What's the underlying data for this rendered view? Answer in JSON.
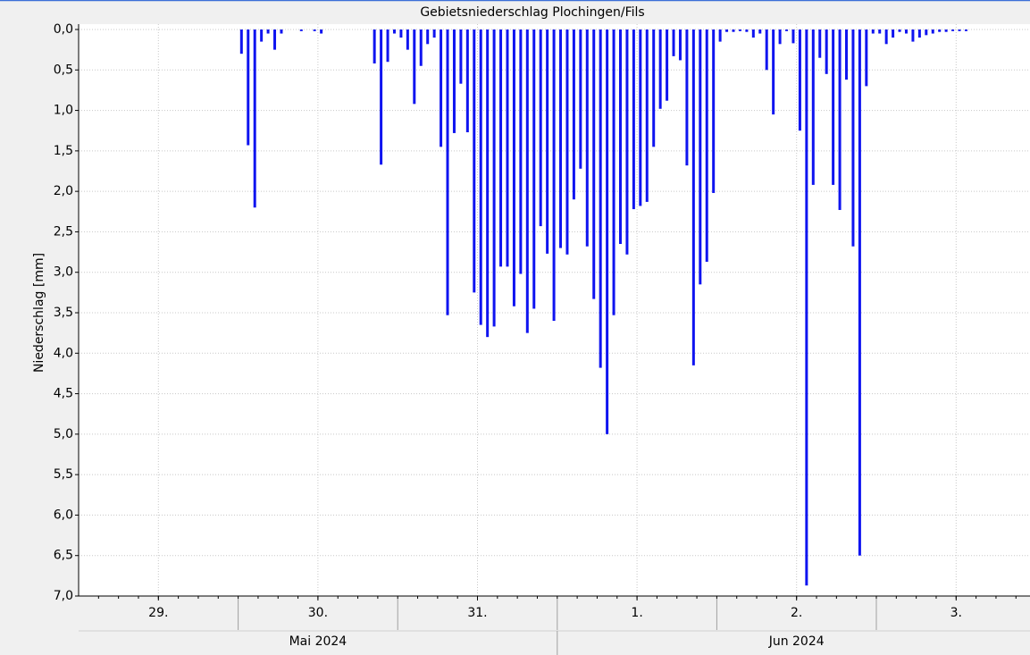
{
  "chart_data": {
    "type": "bar",
    "title": "Gebietsniederschlag Plochingen/Fils",
    "ylabel": "Niederschlag [mm]",
    "color": "#0f14f0",
    "yinverted": true,
    "grid": true,
    "ylim": [
      0,
      7
    ],
    "yticks": [
      {
        "value": 0,
        "label": "0,0"
      },
      {
        "value": 0.5,
        "label": "0,5"
      },
      {
        "value": 1,
        "label": "1,0"
      },
      {
        "value": 1.5,
        "label": "1,5"
      },
      {
        "value": 2,
        "label": "2,0"
      },
      {
        "value": 2.5,
        "label": "2,5"
      },
      {
        "value": 3,
        "label": "3,0"
      },
      {
        "value": 3.5,
        "label": "3,5"
      },
      {
        "value": 4,
        "label": "4,0"
      },
      {
        "value": 4.5,
        "label": "4,5"
      },
      {
        "value": 5,
        "label": "5,0"
      },
      {
        "value": 5.5,
        "label": "5,5"
      },
      {
        "value": 6,
        "label": "6,0"
      },
      {
        "value": 6.5,
        "label": "6,5"
      },
      {
        "value": 7,
        "label": "7,0"
      }
    ],
    "xlim": [
      "2024-05-29T00:00",
      "2024-06-04T00:00"
    ],
    "xticks": [
      {
        "value": "2024-05-29T12:00",
        "label": "29."
      },
      {
        "value": "2024-05-30T12:00",
        "label": "30."
      },
      {
        "value": "2024-05-31T12:00",
        "label": "31."
      },
      {
        "value": "2024-06-01T12:00",
        "label": "1."
      },
      {
        "value": "2024-06-02T12:00",
        "label": "2."
      },
      {
        "value": "2024-06-03T12:00",
        "label": "3."
      }
    ],
    "xgroups": [
      {
        "label": "Mai 2024",
        "start": "2024-05-29T00:00",
        "end": "2024-06-01T00:00"
      },
      {
        "label": "Jun 2024",
        "start": "2024-06-01T00:00",
        "end": "2024-06-04T00:00"
      }
    ],
    "x": [
      "2024-05-30T00:00",
      "2024-05-30T01:00",
      "2024-05-30T02:00",
      "2024-05-30T03:00",
      "2024-05-30T04:00",
      "2024-05-30T05:00",
      "2024-05-30T06:00",
      "2024-05-30T09:00",
      "2024-05-30T11:00",
      "2024-05-30T12:00",
      "2024-05-30T20:00",
      "2024-05-30T21:00",
      "2024-05-30T22:00",
      "2024-05-30T23:00",
      "2024-05-31T00:00",
      "2024-05-31T01:00",
      "2024-05-31T02:00",
      "2024-05-31T03:00",
      "2024-05-31T04:00",
      "2024-05-31T05:00",
      "2024-05-31T06:00",
      "2024-05-31T07:00",
      "2024-05-31T08:00",
      "2024-05-31T09:00",
      "2024-05-31T10:00",
      "2024-05-31T11:00",
      "2024-05-31T12:00",
      "2024-05-31T13:00",
      "2024-05-31T14:00",
      "2024-05-31T15:00",
      "2024-05-31T16:00",
      "2024-05-31T17:00",
      "2024-05-31T18:00",
      "2024-05-31T19:00",
      "2024-05-31T20:00",
      "2024-05-31T21:00",
      "2024-05-31T22:00",
      "2024-05-31T23:00",
      "2024-06-01T00:00",
      "2024-06-01T01:00",
      "2024-06-01T02:00",
      "2024-06-01T03:00",
      "2024-06-01T04:00",
      "2024-06-01T05:00",
      "2024-06-01T06:00",
      "2024-06-01T07:00",
      "2024-06-01T08:00",
      "2024-06-01T09:00",
      "2024-06-01T10:00",
      "2024-06-01T11:00",
      "2024-06-01T12:00",
      "2024-06-01T13:00",
      "2024-06-01T14:00",
      "2024-06-01T15:00",
      "2024-06-01T16:00",
      "2024-06-01T17:00",
      "2024-06-01T18:00",
      "2024-06-01T19:00",
      "2024-06-01T20:00",
      "2024-06-01T21:00",
      "2024-06-01T22:00",
      "2024-06-01T23:00",
      "2024-06-02T00:00",
      "2024-06-02T01:00",
      "2024-06-02T02:00",
      "2024-06-02T03:00",
      "2024-06-02T04:00",
      "2024-06-02T05:00",
      "2024-06-02T06:00",
      "2024-06-02T07:00",
      "2024-06-02T08:00",
      "2024-06-02T09:00",
      "2024-06-02T10:00",
      "2024-06-02T11:00",
      "2024-06-02T12:00",
      "2024-06-02T13:00",
      "2024-06-02T14:00",
      "2024-06-02T15:00",
      "2024-06-02T16:00",
      "2024-06-02T17:00",
      "2024-06-02T18:00",
      "2024-06-02T19:00",
      "2024-06-02T20:00",
      "2024-06-02T21:00",
      "2024-06-02T22:00",
      "2024-06-02T23:00",
      "2024-06-03T00:00",
      "2024-06-03T01:00",
      "2024-06-03T02:00",
      "2024-06-03T03:00",
      "2024-06-03T04:00",
      "2024-06-03T05:00",
      "2024-06-03T06:00",
      "2024-06-03T07:00",
      "2024-06-03T08:00",
      "2024-06-03T09:00",
      "2024-06-03T10:00",
      "2024-06-03T11:00",
      "2024-06-03T12:00",
      "2024-06-03T13:00"
    ],
    "values": [
      0.3,
      1.43,
      2.2,
      0.15,
      0.05,
      0.25,
      0.05,
      0.02,
      0.02,
      0.05,
      0.42,
      1.67,
      0.4,
      0.05,
      0.1,
      0.25,
      0.92,
      0.45,
      0.18,
      0.1,
      1.45,
      3.53,
      1.28,
      0.67,
      1.27,
      3.25,
      3.65,
      3.8,
      3.67,
      2.93,
      2.93,
      3.42,
      3.02,
      3.75,
      3.45,
      2.43,
      2.77,
      3.6,
      2.7,
      2.78,
      2.1,
      1.72,
      2.68,
      3.33,
      4.18,
      5.0,
      3.53,
      2.65,
      2.78,
      2.22,
      2.18,
      2.13,
      1.45,
      0.98,
      0.88,
      0.33,
      0.38,
      1.68,
      4.15,
      3.15,
      2.87,
      2.02,
      0.15,
      0.03,
      0.03,
      0.02,
      0.03,
      0.1,
      0.05,
      0.5,
      1.05,
      0.18,
      0.02,
      0.17,
      1.25,
      6.87,
      1.92,
      0.35,
      0.55,
      1.92,
      2.23,
      0.62,
      2.68,
      6.5,
      0.7,
      0.05,
      0.05,
      0.18,
      0.1,
      0.03,
      0.05,
      0.15,
      0.1,
      0.07,
      0.05,
      0.03,
      0.03,
      0.02,
      0.02,
      0.02
    ]
  }
}
